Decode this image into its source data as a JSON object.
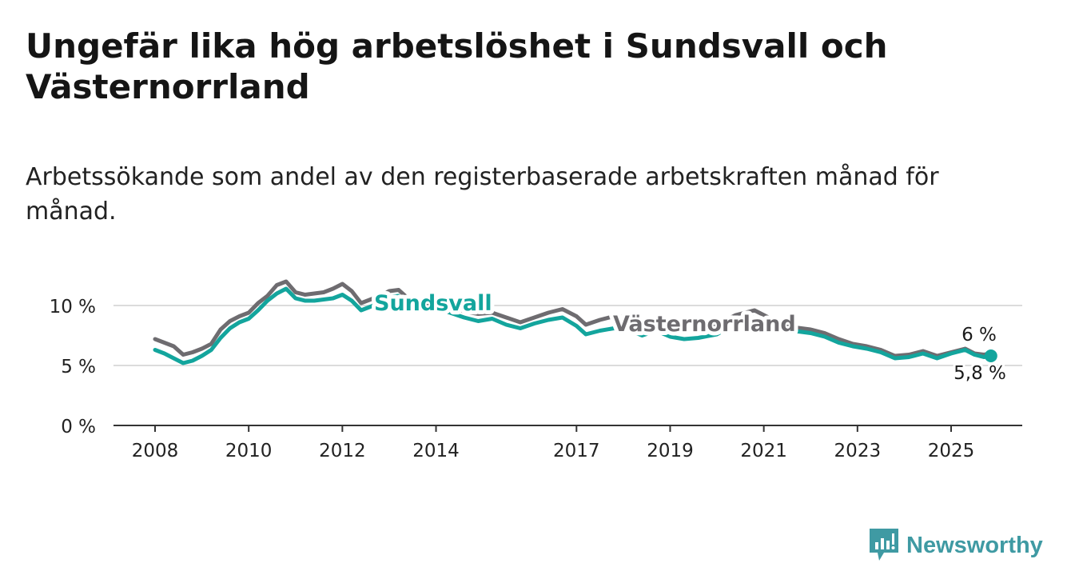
{
  "title": "Ungefär lika hög arbetslöshet i Sundsvall och Västernorrland",
  "subtitle": "Arbetssökande som andel av den registerbaserade arbetskraften månad för månad.",
  "brand": {
    "name": "Newsworthy",
    "color": "#3f9aa3",
    "icon": "newsworthy-logo-icon"
  },
  "chart_data": {
    "type": "line",
    "title": "Ungefär lika hög arbetslöshet i Sundsvall och Västernorrland",
    "xlabel": "",
    "ylabel": "",
    "xlim": [
      2008,
      2026.5
    ],
    "ylim": [
      0,
      10.5
    ],
    "x_ticks": [
      2008,
      2010,
      2012,
      2014,
      2017,
      2019,
      2021,
      2023,
      2025
    ],
    "x_tick_labels": [
      "2008",
      "2010",
      "2012",
      "2014",
      "2017",
      "2019",
      "2021",
      "2023",
      "2025"
    ],
    "y_ticks": [
      0,
      5,
      10
    ],
    "y_tick_labels": [
      "0 %",
      "5 %",
      "10 %"
    ],
    "grid": "horizontal",
    "legend": "inline labels on lines",
    "series": [
      {
        "name": "Västernorrland",
        "color": "#6e6c70",
        "end_label": "6 %",
        "points": [
          [
            2008,
            7.2
          ],
          [
            2008.2,
            6.9
          ],
          [
            2008.4,
            6.6
          ],
          [
            2008.6,
            5.9
          ],
          [
            2008.8,
            6.1
          ],
          [
            2009,
            6.4
          ],
          [
            2009.2,
            6.8
          ],
          [
            2009.4,
            8.0
          ],
          [
            2009.6,
            8.7
          ],
          [
            2009.8,
            9.1
          ],
          [
            2010,
            9.4
          ],
          [
            2010.2,
            10.2
          ],
          [
            2010.4,
            10.8
          ],
          [
            2010.6,
            11.7
          ],
          [
            2010.8,
            12.0
          ],
          [
            2011,
            11.1
          ],
          [
            2011.2,
            10.9
          ],
          [
            2011.4,
            11.0
          ],
          [
            2011.6,
            11.1
          ],
          [
            2011.8,
            11.4
          ],
          [
            2012,
            11.8
          ],
          [
            2012.2,
            11.2
          ],
          [
            2012.4,
            10.2
          ],
          [
            2012.6,
            10.5
          ],
          [
            2012.8,
            10.8
          ],
          [
            2013,
            11.2
          ],
          [
            2013.2,
            11.3
          ],
          [
            2013.4,
            10.6
          ],
          [
            2013.6,
            10.0
          ],
          [
            2013.8,
            10.1
          ],
          [
            2014,
            10.2
          ],
          [
            2014.3,
            10.0
          ],
          [
            2014.6,
            9.5
          ],
          [
            2014.9,
            9.3
          ],
          [
            2015.2,
            9.4
          ],
          [
            2015.5,
            9.0
          ],
          [
            2015.8,
            8.6
          ],
          [
            2016.1,
            9.0
          ],
          [
            2016.4,
            9.4
          ],
          [
            2016.7,
            9.7
          ],
          [
            2017,
            9.1
          ],
          [
            2017.2,
            8.4
          ],
          [
            2017.5,
            8.8
          ],
          [
            2017.8,
            9.1
          ],
          [
            2018.1,
            9.0
          ],
          [
            2018.4,
            8.5
          ],
          [
            2018.7,
            8.8
          ],
          [
            2019,
            8.4
          ],
          [
            2019.3,
            8.1
          ],
          [
            2019.6,
            8.2
          ],
          [
            2020,
            8.4
          ],
          [
            2020.4,
            9.2
          ],
          [
            2020.8,
            9.6
          ],
          [
            2021.2,
            8.8
          ],
          [
            2021.6,
            8.2
          ],
          [
            2022,
            8.0
          ],
          [
            2022.3,
            7.7
          ],
          [
            2022.6,
            7.2
          ],
          [
            2022.9,
            6.8
          ],
          [
            2023.2,
            6.6
          ],
          [
            2023.5,
            6.3
          ],
          [
            2023.8,
            5.8
          ],
          [
            2024.1,
            5.9
          ],
          [
            2024.4,
            6.2
          ],
          [
            2024.7,
            5.8
          ],
          [
            2025,
            6.1
          ],
          [
            2025.3,
            6.4
          ],
          [
            2025.5,
            6.0
          ],
          [
            2025.7,
            5.9
          ],
          [
            2025.85,
            6.0
          ]
        ]
      },
      {
        "name": "Sundsvall",
        "color": "#13a59d",
        "end_label": "5,8 %",
        "points": [
          [
            2008,
            6.3
          ],
          [
            2008.2,
            6.0
          ],
          [
            2008.4,
            5.6
          ],
          [
            2008.6,
            5.2
          ],
          [
            2008.8,
            5.4
          ],
          [
            2009,
            5.8
          ],
          [
            2009.2,
            6.3
          ],
          [
            2009.4,
            7.3
          ],
          [
            2009.6,
            8.1
          ],
          [
            2009.8,
            8.6
          ],
          [
            2010,
            8.9
          ],
          [
            2010.2,
            9.6
          ],
          [
            2010.4,
            10.4
          ],
          [
            2010.6,
            11.0
          ],
          [
            2010.8,
            11.4
          ],
          [
            2011,
            10.6
          ],
          [
            2011.2,
            10.4
          ],
          [
            2011.4,
            10.4
          ],
          [
            2011.6,
            10.5
          ],
          [
            2011.8,
            10.6
          ],
          [
            2012,
            10.9
          ],
          [
            2012.2,
            10.4
          ],
          [
            2012.4,
            9.6
          ],
          [
            2012.6,
            9.9
          ],
          [
            2012.8,
            10.2
          ],
          [
            2013,
            10.7
          ],
          [
            2013.2,
            10.8
          ],
          [
            2013.4,
            10.1
          ],
          [
            2013.6,
            9.5
          ],
          [
            2013.8,
            9.6
          ],
          [
            2014,
            9.7
          ],
          [
            2014.3,
            9.4
          ],
          [
            2014.6,
            9.0
          ],
          [
            2014.9,
            8.7
          ],
          [
            2015.2,
            8.9
          ],
          [
            2015.5,
            8.4
          ],
          [
            2015.8,
            8.1
          ],
          [
            2016.1,
            8.5
          ],
          [
            2016.4,
            8.8
          ],
          [
            2016.7,
            9.0
          ],
          [
            2017,
            8.3
          ],
          [
            2017.2,
            7.6
          ],
          [
            2017.5,
            7.9
          ],
          [
            2017.8,
            8.1
          ],
          [
            2018.1,
            8.0
          ],
          [
            2018.4,
            7.5
          ],
          [
            2018.7,
            7.9
          ],
          [
            2019,
            7.4
          ],
          [
            2019.3,
            7.2
          ],
          [
            2019.6,
            7.3
          ],
          [
            2020,
            7.6
          ],
          [
            2020.4,
            8.5
          ],
          [
            2020.8,
            9.0
          ],
          [
            2021.2,
            8.3
          ],
          [
            2021.6,
            7.9
          ],
          [
            2022,
            7.7
          ],
          [
            2022.3,
            7.4
          ],
          [
            2022.6,
            6.9
          ],
          [
            2022.9,
            6.6
          ],
          [
            2023.2,
            6.4
          ],
          [
            2023.5,
            6.1
          ],
          [
            2023.8,
            5.6
          ],
          [
            2024.1,
            5.7
          ],
          [
            2024.4,
            6.0
          ],
          [
            2024.7,
            5.6
          ],
          [
            2025,
            6.0
          ],
          [
            2025.3,
            6.3
          ],
          [
            2025.5,
            5.9
          ],
          [
            2025.7,
            5.7
          ],
          [
            2025.85,
            5.8
          ]
        ]
      }
    ]
  }
}
